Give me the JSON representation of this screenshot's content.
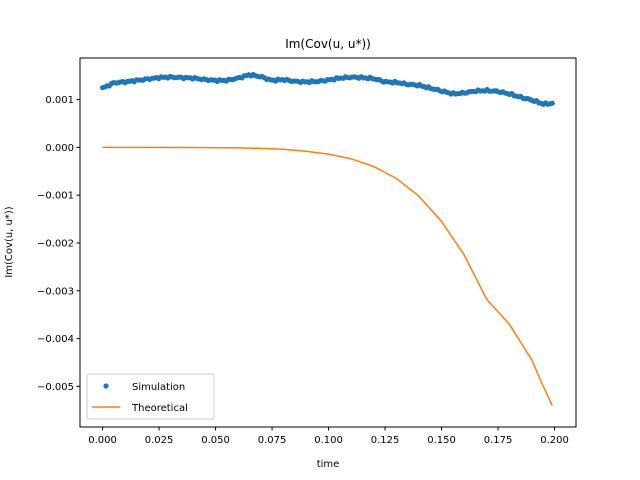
{
  "chart_data": {
    "type": "line",
    "title": "Im(Cov(u, u*))",
    "xlabel": "time",
    "ylabel": "Im(Cov(u, u*))",
    "xlim": [
      -0.01,
      0.2095
    ],
    "ylim": [
      -0.00585,
      0.00187
    ],
    "xticks": [
      0.0,
      0.025,
      0.05,
      0.075,
      0.1,
      0.125,
      0.15,
      0.175,
      0.2
    ],
    "xtick_labels": [
      "0.000",
      "0.025",
      "0.050",
      "0.075",
      "0.100",
      "0.125",
      "0.150",
      "0.175",
      "0.200"
    ],
    "yticks": [
      0.001,
      0.0,
      -0.001,
      -0.002,
      -0.003,
      -0.004,
      -0.005
    ],
    "ytick_labels": [
      "0.001",
      "0.000",
      "−0.001",
      "−0.002",
      "−0.003",
      "−0.004",
      "−0.005"
    ],
    "grid": false,
    "legend_position": "lower-left",
    "series": [
      {
        "name": "Simulation",
        "style": "dots",
        "color": "#1f77b4",
        "x": [
          0.0,
          0.005,
          0.01,
          0.015,
          0.02,
          0.025,
          0.03,
          0.035,
          0.04,
          0.045,
          0.05,
          0.055,
          0.06,
          0.065,
          0.07,
          0.075,
          0.08,
          0.085,
          0.09,
          0.095,
          0.1,
          0.105,
          0.11,
          0.115,
          0.12,
          0.125,
          0.13,
          0.135,
          0.14,
          0.145,
          0.15,
          0.155,
          0.16,
          0.165,
          0.17,
          0.175,
          0.18,
          0.185,
          0.19,
          0.195,
          0.199
        ],
        "y": [
          0.00124,
          0.00135,
          0.00137,
          0.0014,
          0.00143,
          0.00146,
          0.00147,
          0.00146,
          0.00145,
          0.00142,
          0.0014,
          0.0014,
          0.00145,
          0.00152,
          0.00148,
          0.0014,
          0.00142,
          0.00138,
          0.00137,
          0.00138,
          0.00141,
          0.00145,
          0.00147,
          0.00146,
          0.00144,
          0.00137,
          0.00136,
          0.00132,
          0.0013,
          0.00124,
          0.00118,
          0.00112,
          0.00114,
          0.00118,
          0.00119,
          0.00117,
          0.00112,
          0.00105,
          0.00099,
          0.00091,
          0.00092
        ]
      },
      {
        "name": "Theoretical",
        "style": "line",
        "color": "#ff7f0e",
        "x": [
          0.0,
          0.02,
          0.04,
          0.06,
          0.07,
          0.08,
          0.09,
          0.1,
          0.11,
          0.12,
          0.13,
          0.14,
          0.15,
          0.16,
          0.17,
          0.18,
          0.19,
          0.195,
          0.199
        ],
        "y": [
          0.0,
          0.0,
          -2e-06,
          -1e-05,
          -2e-05,
          -4e-05,
          -8e-05,
          -0.00014,
          -0.00024,
          -0.0004,
          -0.00065,
          -0.00102,
          -0.00155,
          -0.00225,
          -0.00318,
          -0.0037,
          -0.00445,
          -0.005,
          -0.0054
        ]
      }
    ]
  }
}
